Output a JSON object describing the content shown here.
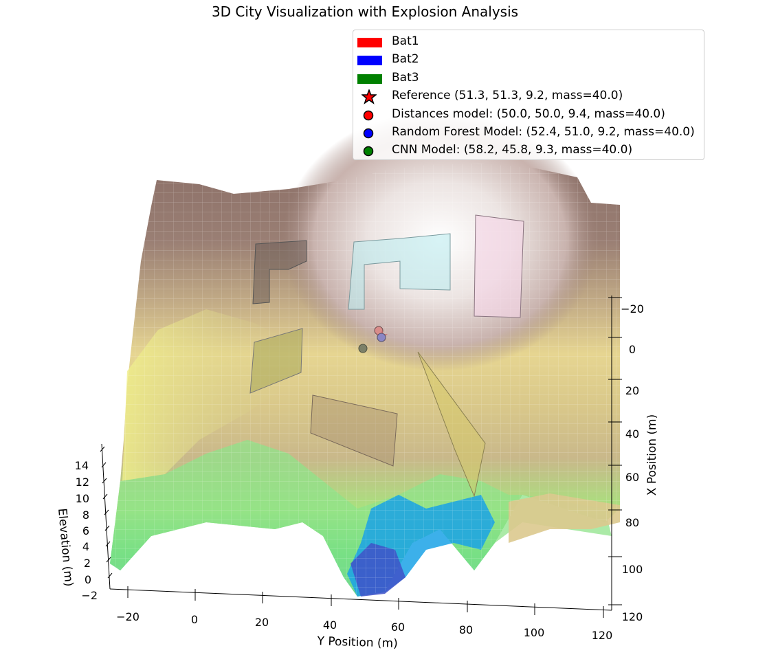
{
  "chart_data": {
    "type": "surface3d",
    "title": "3D City Visualization with Explosion Analysis",
    "xlabel": "Y Position (m)",
    "ylabel": "X Position (m)",
    "zlabel": "Elevation (m)",
    "y_ticks": [
      "−20",
      "0",
      "20",
      "40",
      "60",
      "80",
      "100",
      "120"
    ],
    "x_ticks": [
      "−20",
      "0",
      "20",
      "40",
      "60",
      "80",
      "100",
      "120"
    ],
    "z_ticks": [
      "−2",
      "0",
      "2",
      "4",
      "6",
      "8",
      "10",
      "12",
      "14"
    ],
    "colormap": "terrain",
    "legend_placement": "top-right",
    "legend": [
      {
        "kind": "patch",
        "label": "Bat1",
        "color": "#ff0000"
      },
      {
        "kind": "patch",
        "label": "Bat2",
        "color": "#0000ff"
      },
      {
        "kind": "patch",
        "label": "Bat3",
        "color": "#008000"
      },
      {
        "kind": "star",
        "label": "Reference (51.3, 51.3, 9.2, mass=40.0)",
        "color": "#ff0000"
      },
      {
        "kind": "circle",
        "label": "Distances model: (50.0, 50.0, 9.4, mass=40.0)",
        "color": "#ff0000"
      },
      {
        "kind": "circle",
        "label": "Random Forest Model: (52.4, 51.0, 9.2, mass=40.0)",
        "color": "#0000ff"
      },
      {
        "kind": "circle",
        "label": "CNN Model: (58.2, 45.8, 9.3, mass=40.0)",
        "color": "#008000"
      }
    ],
    "points": [
      {
        "name": "Reference",
        "x": 51.3,
        "y": 51.3,
        "z": 9.2,
        "mass": 40.0
      },
      {
        "name": "Distances model",
        "x": 50.0,
        "y": 50.0,
        "z": 9.4,
        "mass": 40.0
      },
      {
        "name": "Random Forest Model",
        "x": 52.4,
        "y": 51.0,
        "z": 9.2,
        "mass": 40.0
      },
      {
        "name": "CNN Model",
        "x": 58.2,
        "y": 45.8,
        "z": 9.3,
        "mass": 40.0
      }
    ]
  }
}
